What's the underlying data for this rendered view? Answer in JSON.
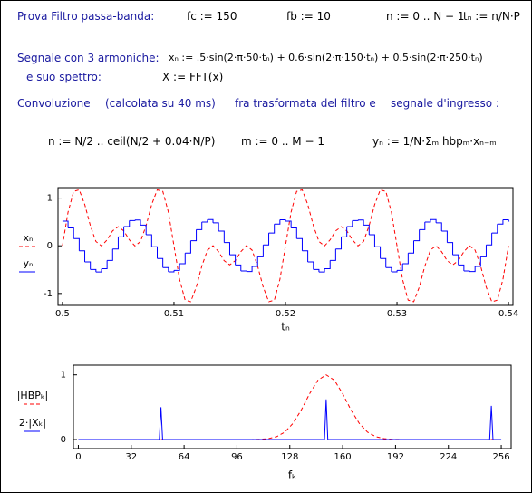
{
  "worksheet": {
    "title": "Prova Filtro passa-banda:",
    "fc": "fc := 150",
    "fb": "fb := 10",
    "n_range": "n := 0 .. N − 1",
    "tn": "tₙ := n/N·P",
    "signal_label": "Segnale con 3 armoniche:",
    "xn_formula": "xₙ := .5·sin(2·π·50·tₙ) + 0.6·sin(2·π·150·tₙ) + 0.5·sin(2·π·250·tₙ)",
    "spectrum_label": "e suo spettro:",
    "fft": "X := FFT(x)",
    "conv_label": "Convoluzione",
    "conv_note": "(calcolata su 40 ms)",
    "conv_mid": "fra trasformata del filtro e",
    "conv_end": "segnale d'ingresso :",
    "n_formula": "n := N/2 .. ceil(N/2 + 0.04·N/P)",
    "m_range": "m := 0 .. M − 1",
    "yn_formula": "yₙ := 1/N·Σₘ hbpₘ·xₙ₋ₘ"
  },
  "chart_data": [
    {
      "type": "line",
      "xlabel": "tₙ",
      "x": [
        0.5,
        0.5005,
        0.501,
        0.5015,
        0.502,
        0.5025,
        0.503,
        0.5035,
        0.504,
        0.5045,
        0.505,
        0.5055,
        0.506,
        0.5065,
        0.507,
        0.5075,
        0.508,
        0.5085,
        0.509,
        0.5095,
        0.51,
        0.5105,
        0.511,
        0.5115,
        0.512,
        0.5125,
        0.513,
        0.5135,
        0.514,
        0.5145,
        0.515,
        0.5155,
        0.516,
        0.5165,
        0.517,
        0.5175,
        0.518,
        0.5185,
        0.519,
        0.5195,
        0.52,
        0.5205,
        0.521,
        0.5215,
        0.522,
        0.5225,
        0.523,
        0.5235,
        0.524,
        0.5245,
        0.525,
        0.5255,
        0.526,
        0.5265,
        0.527,
        0.5275,
        0.528,
        0.5285,
        0.529,
        0.5295,
        0.53,
        0.5305,
        0.531,
        0.5315,
        0.532,
        0.5325,
        0.533,
        0.5335,
        0.534,
        0.5345,
        0.535,
        0.5355,
        0.536,
        0.5365,
        0.537,
        0.5375,
        0.538,
        0.5385,
        0.539,
        0.5395,
        0.54
      ],
      "series": [
        {
          "name": "xₙ",
          "color": "#ff0000",
          "dash": true,
          "values": [
            0,
            0.704,
            1.14,
            1.173,
            0.865,
            0.424,
            0.09,
            -0.002,
            0.123,
            0.313,
            0.4,
            0.313,
            0.123,
            -0.002,
            0.09,
            0.424,
            0.865,
            1.173,
            1.14,
            0.704,
            0,
            -0.704,
            -1.14,
            -1.173,
            -0.865,
            -0.424,
            -0.09,
            0.002,
            -0.123,
            -0.313,
            -0.4,
            -0.313,
            -0.123,
            0.002,
            -0.09,
            -0.424,
            -0.865,
            -1.173,
            -1.14,
            -0.704,
            0,
            0.704,
            1.14,
            1.173,
            0.865,
            0.424,
            0.09,
            -0.002,
            0.123,
            0.313,
            0.4,
            0.313,
            0.123,
            -0.002,
            0.09,
            0.424,
            0.865,
            1.173,
            1.14,
            0.704,
            0,
            -0.704,
            -1.14,
            -1.173,
            -0.865,
            -0.424,
            -0.09,
            0.002,
            -0.123,
            -0.313,
            -0.4,
            -0.313,
            -0.123,
            0.002,
            -0.09,
            -0.424,
            -0.865,
            -1.173,
            -1.14,
            -0.704,
            0
          ]
        },
        {
          "name": "yₙ",
          "color": "#0000ff",
          "step": true,
          "values": [
            0.517,
            0.375,
            0.152,
            -0.105,
            -0.339,
            -0.498,
            -0.55,
            -0.481,
            -0.308,
            -0.067,
            0.188,
            0.402,
            0.529,
            0.54,
            0.433,
            0.232,
            -0.019,
            -0.267,
            -0.456,
            -0.546,
            -0.517,
            -0.375,
            -0.152,
            0.105,
            0.339,
            0.498,
            0.55,
            0.481,
            0.308,
            0.067,
            -0.188,
            -0.402,
            -0.529,
            -0.54,
            -0.433,
            -0.232,
            0.019,
            0.267,
            0.456,
            0.546,
            0.517,
            0.375,
            0.152,
            -0.105,
            -0.339,
            -0.498,
            -0.55,
            -0.481,
            -0.308,
            -0.067,
            0.188,
            0.402,
            0.529,
            0.54,
            0.433,
            0.232,
            -0.019,
            -0.267,
            -0.456,
            -0.546,
            -0.517,
            -0.375,
            -0.152,
            0.105,
            0.339,
            0.498,
            0.55,
            0.481,
            0.308,
            0.067,
            -0.188,
            -0.402,
            -0.529,
            -0.54,
            -0.433,
            -0.232,
            0.019,
            0.267,
            0.456,
            0.546,
            0.517
          ]
        }
      ],
      "xlim": [
        0.4996,
        0.5404
      ],
      "ylim": [
        -1.25,
        1.22
      ],
      "xticks": [
        0.5,
        0.51,
        0.52,
        0.53,
        0.54
      ],
      "yticks": [
        -1,
        0,
        1
      ]
    },
    {
      "type": "line",
      "xlabel": "fₖ",
      "series": [
        {
          "name": "|HBPₖ|",
          "color": "#ff0000",
          "dash": true,
          "x": [
            0,
            100,
            105,
            110,
            115,
            120,
            125,
            130,
            135,
            140,
            145,
            150,
            155,
            160,
            165,
            170,
            175,
            180,
            185,
            190,
            195,
            200,
            256
          ],
          "values": [
            0,
            0,
            0.001,
            0.004,
            0.014,
            0.044,
            0.115,
            0.251,
            0.459,
            0.708,
            0.917,
            1,
            0.917,
            0.708,
            0.459,
            0.251,
            0.115,
            0.044,
            0.014,
            0.004,
            0.001,
            0,
            0
          ]
        },
        {
          "name": "2·|Xₖ|",
          "color": "#0000ff",
          "x": [
            0,
            49,
            50,
            51,
            149,
            150,
            151,
            249,
            250,
            251,
            256
          ],
          "values": [
            0,
            0,
            0.5,
            0,
            0,
            0.62,
            0,
            0,
            0.52,
            0,
            0
          ]
        }
      ],
      "xlim": [
        -3,
        262
      ],
      "ylim": [
        -0.14,
        1.15
      ],
      "xticks": [
        0,
        32,
        64,
        96,
        128,
        160,
        192,
        224,
        256
      ],
      "yticks": [
        0,
        1
      ]
    }
  ]
}
